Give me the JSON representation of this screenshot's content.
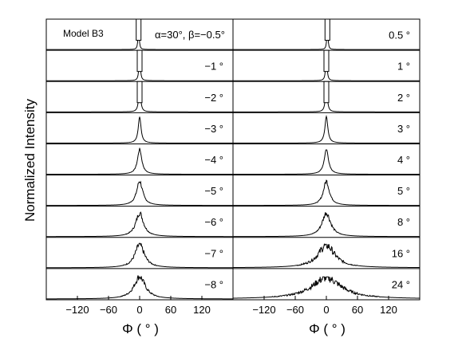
{
  "chart_data": {
    "type": "line",
    "ylabel": "Normalized Intensity",
    "xlabel": "Φ ( ° )",
    "xlim": [
      -180,
      180
    ],
    "x_ticks": [
      -120,
      -60,
      0,
      60,
      120
    ],
    "x_tick_labels": [
      "−120",
      "−60",
      "0",
      "60",
      "120"
    ],
    "model_label": "Model B3",
    "alpha_label": "α=30°, β=−0.5°",
    "panels": [
      {
        "name": "left",
        "series": [
          {
            "label": "",
            "beta": -0.5,
            "width": 1.2,
            "noise": 0,
            "peak": 1.0,
            "offset": -2,
            "notch": true
          },
          {
            "label": "−1 °",
            "beta": -1,
            "width": 1.6,
            "noise": 0,
            "peak": 1.0,
            "offset": 0,
            "notch": true
          },
          {
            "label": "−2 °",
            "beta": -2,
            "width": 2.2,
            "noise": 0,
            "peak": 1.0,
            "offset": 0,
            "notch": true
          },
          {
            "label": "−3 °",
            "beta": -3,
            "width": 3.2,
            "noise": 0.02,
            "peak": 1.0,
            "offset": 0,
            "notch": false
          },
          {
            "label": "−4 °",
            "beta": -4,
            "width": 5,
            "noise": 0.05,
            "peak": 0.95,
            "offset": 0,
            "notch": false
          },
          {
            "label": "−5 °",
            "beta": -5,
            "width": 7,
            "noise": 0.1,
            "peak": 0.92,
            "offset": 0,
            "notch": false
          },
          {
            "label": "−6 °",
            "beta": -6,
            "width": 9,
            "noise": 0.12,
            "peak": 0.9,
            "offset": 0,
            "notch": false
          },
          {
            "label": "−7 °",
            "beta": -7,
            "width": 11,
            "noise": 0.15,
            "peak": 0.88,
            "offset": 0,
            "notch": false
          },
          {
            "label": "−8 °",
            "beta": -8,
            "width": 13,
            "noise": 0.15,
            "peak": 0.85,
            "offset": 0,
            "notch": false
          }
        ]
      },
      {
        "name": "right",
        "series": [
          {
            "label": "0.5 °",
            "beta": 0.5,
            "width": 1.2,
            "noise": 0,
            "peak": 1.0,
            "offset": 2,
            "notch": true
          },
          {
            "label": "1 °",
            "beta": 1,
            "width": 1.6,
            "noise": 0,
            "peak": 1.0,
            "offset": 0,
            "notch": true
          },
          {
            "label": "2 °",
            "beta": 2,
            "width": 2.2,
            "noise": 0,
            "peak": 1.0,
            "offset": 0,
            "notch": true
          },
          {
            "label": "3 °",
            "beta": 3,
            "width": 3.4,
            "noise": 0.02,
            "peak": 1.0,
            "offset": 0,
            "notch": false
          },
          {
            "label": "4 °",
            "beta": 4,
            "width": 5,
            "noise": 0.05,
            "peak": 0.95,
            "offset": 0,
            "notch": false
          },
          {
            "label": "5 °",
            "beta": 5,
            "width": 7,
            "noise": 0.1,
            "peak": 0.92,
            "offset": 0,
            "notch": false
          },
          {
            "label": "8 °",
            "beta": 8,
            "width": 10,
            "noise": 0.12,
            "peak": 0.9,
            "offset": 0,
            "notch": false
          },
          {
            "label": "16 °",
            "beta": 16,
            "width": 20,
            "noise": 0.2,
            "peak": 0.85,
            "offset": 0,
            "notch": false
          },
          {
            "label": "24 °",
            "beta": 24,
            "width": 35,
            "noise": 0.2,
            "peak": 0.8,
            "offset": 0,
            "notch": false
          }
        ]
      }
    ],
    "grid": false,
    "legend": "none"
  }
}
